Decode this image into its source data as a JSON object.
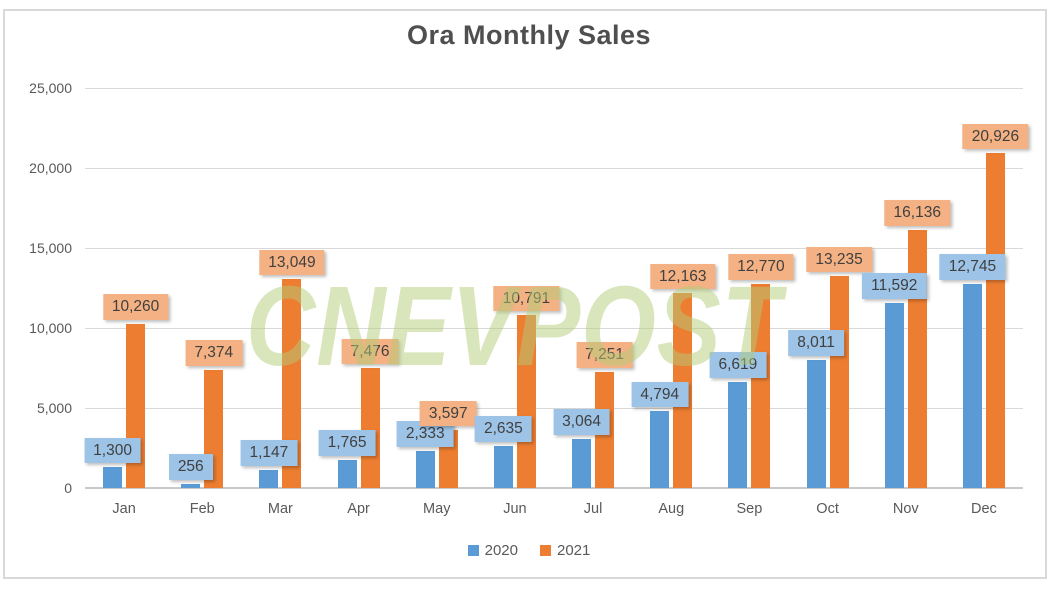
{
  "watermark": {
    "text": "CNEVPOST"
  },
  "colors": {
    "series_2020_bar": "#5B9BD5",
    "series_2020_label_bg": "#9DC3E6",
    "series_2021_bar": "#ED7D31",
    "series_2021_label_bg": "#F4B183",
    "gridline": "#D9D9D9",
    "axis_text": "#595959",
    "label_text": "#404040",
    "watermark_green": "#B3CB77"
  },
  "chart_data": {
    "type": "bar",
    "title": "Ora Monthly Sales",
    "categories": [
      "Jan",
      "Feb",
      "Mar",
      "Apr",
      "May",
      "Jun",
      "Jul",
      "Aug",
      "Sep",
      "Oct",
      "Nov",
      "Dec"
    ],
    "series": [
      {
        "name": "2020",
        "color": "#5B9BD5",
        "label_bg": "#9DC3E6",
        "values": [
          1300,
          256,
          1147,
          1765,
          2333,
          2635,
          3064,
          4794,
          6619,
          8011,
          11592,
          12745
        ],
        "data_labels": [
          "1,300",
          "256",
          "1,147",
          "1,765",
          "2,333",
          "2,635",
          "3,064",
          "4,794",
          "6,619",
          "8,011",
          "11,592",
          "12,745"
        ]
      },
      {
        "name": "2021",
        "color": "#ED7D31",
        "label_bg": "#F4B183",
        "values": [
          10260,
          7374,
          13049,
          7476,
          3597,
          10791,
          7251,
          12163,
          12770,
          13235,
          16136,
          20926
        ],
        "data_labels": [
          "10,260",
          "7,374",
          "13,049",
          "7,476",
          "3,597",
          "10,791",
          "7,251",
          "12,163",
          "12,770",
          "13,235",
          "16,136",
          "20,926"
        ]
      }
    ],
    "xlabel": "",
    "ylabel": "",
    "ylim": [
      0,
      25000
    ],
    "y_tick_interval": 5000,
    "y_tick_labels": [
      "25,000",
      "20,000",
      "15,000",
      "10,000",
      "5,000",
      "0"
    ],
    "grid": true,
    "legend_position": "bottom",
    "legend_entries": [
      "2020",
      "2021"
    ]
  }
}
